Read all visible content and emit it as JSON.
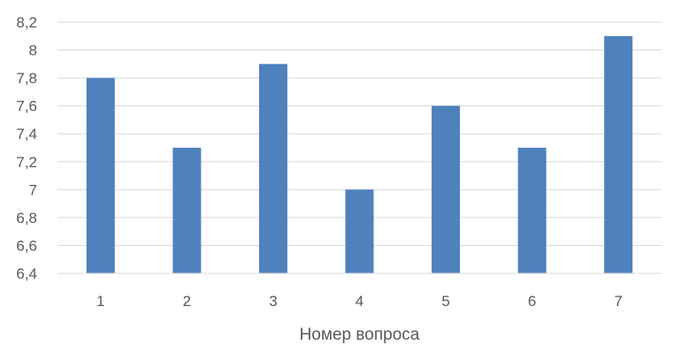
{
  "chart_data": {
    "type": "bar",
    "title": "",
    "xlabel": "Номер вопроса",
    "ylabel": "",
    "categories": [
      "1",
      "2",
      "3",
      "4",
      "5",
      "6",
      "7"
    ],
    "values": [
      7.8,
      7.3,
      7.9,
      7.0,
      7.6,
      7.3,
      8.1
    ],
    "ylim": [
      6.4,
      8.2
    ],
    "yticks": [
      6.4,
      6.6,
      6.8,
      7.0,
      7.2,
      7.4,
      7.6,
      7.8,
      8.0,
      8.2
    ],
    "ytick_labels": [
      "6,4",
      "6,6",
      "6,8",
      "7",
      "7,2",
      "7,4",
      "7,6",
      "7,8",
      "8",
      "8,2"
    ],
    "bar_color": "#4f81bd",
    "grid": true,
    "legend": "none"
  }
}
